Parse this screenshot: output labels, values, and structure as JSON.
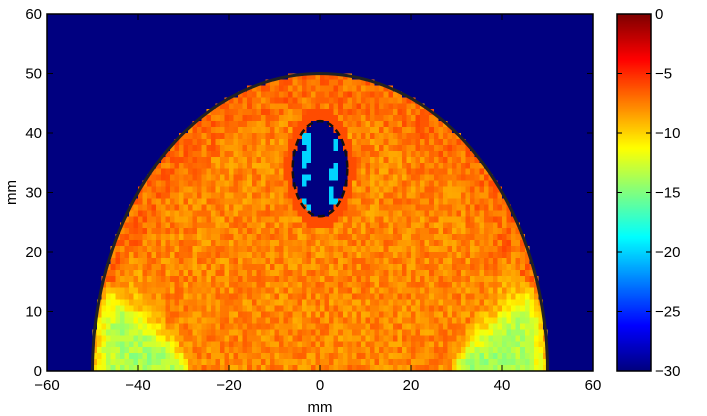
{
  "chart_data": {
    "type": "heatmap",
    "xlabel": "mm",
    "ylabel": "mm",
    "xlim": [
      -60,
      60
    ],
    "ylim": [
      0,
      60
    ],
    "x_ticks": [
      -60,
      -40,
      -20,
      0,
      20,
      40,
      60
    ],
    "x_tick_labels": [
      "−60",
      "−40",
      "−20",
      "0",
      "20",
      "40",
      "60"
    ],
    "y_ticks": [
      0,
      10,
      20,
      30,
      40,
      50,
      60
    ],
    "y_tick_labels": [
      "0",
      "10",
      "20",
      "30",
      "40",
      "50",
      "60"
    ],
    "grid": false,
    "background_value": -30,
    "colorbar": {
      "colormap": "jet",
      "range": [
        -30,
        0
      ],
      "ticks": [
        0,
        -5,
        -10,
        -15,
        -20,
        -25,
        -30
      ],
      "tick_labels": [
        "0",
        "−5",
        "−10",
        "−15",
        "−20",
        "−25",
        "−30"
      ]
    },
    "outer_boundary": {
      "shape": "half-ellipse",
      "center": [
        0,
        0
      ],
      "semi_axis_x": 50,
      "semi_axis_y": 50,
      "line": "solid"
    },
    "inclusion": {
      "shape": "ellipse",
      "center": [
        0,
        34
      ],
      "semi_axis_x": 6,
      "semi_axis_y": 8,
      "line": "dashed",
      "value": -30
    },
    "field_description_values": {
      "dominant_level": -14,
      "beam_level": -7,
      "inclusion_level": -30
    }
  }
}
